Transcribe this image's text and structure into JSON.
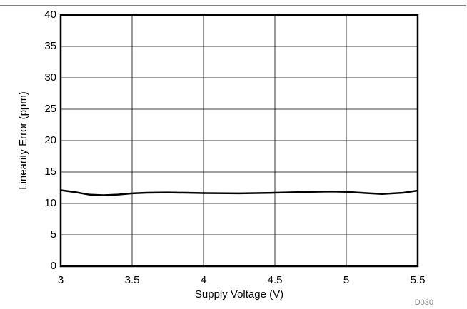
{
  "chart_data": {
    "type": "line",
    "xlabel": "Supply Voltage (V)",
    "ylabel": "Linearity Error (ppm)",
    "annotation": "D030",
    "x": [
      3,
      3.1,
      3.2,
      3.3,
      3.4,
      3.5,
      3.6,
      3.75,
      4,
      4.25,
      4.5,
      4.75,
      4.9,
      5,
      5.1,
      5.25,
      5.4,
      5.5
    ],
    "series": [
      {
        "name": "Linearity Error",
        "color": "#000000",
        "values": [
          12.1,
          11.8,
          11.4,
          11.3,
          11.4,
          11.6,
          11.7,
          11.75,
          11.65,
          11.6,
          11.7,
          11.85,
          11.9,
          11.85,
          11.7,
          11.5,
          11.7,
          12.05
        ]
      }
    ],
    "xlim": [
      3,
      5.5
    ],
    "xticks": [
      3,
      3.5,
      4,
      4.5,
      5,
      5.5
    ],
    "ylim": [
      0,
      40
    ],
    "yticks": [
      0,
      5,
      10,
      15,
      20,
      25,
      30,
      35,
      40
    ],
    "grid": true
  }
}
